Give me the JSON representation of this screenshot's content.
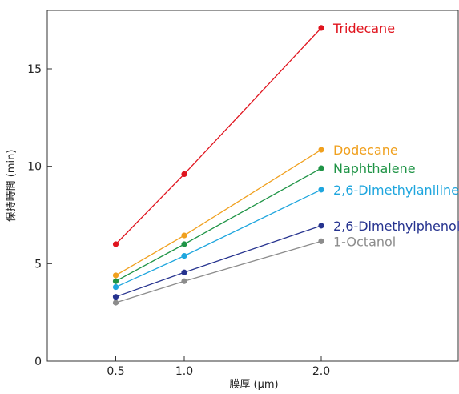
{
  "chart_data": {
    "type": "line",
    "title": "",
    "xlabel": "膜厚 (μm)",
    "ylabel": "保持時間 (min)",
    "x": [
      0.5,
      1.0,
      2.0
    ],
    "x_tick_labels": [
      "0.5",
      "1.0",
      "2.0"
    ],
    "xlim": [
      0.0,
      3.0
    ],
    "ylim": [
      0,
      18.0
    ],
    "y_ticks": [
      0,
      5,
      10,
      15
    ],
    "grid": false,
    "legend": "labels at right end of each line",
    "series": [
      {
        "name": "Tridecane",
        "color": "#e0141e",
        "values": [
          6.0,
          9.6,
          17.1
        ]
      },
      {
        "name": "Dodecane",
        "color": "#f0a01e",
        "values": [
          4.4,
          6.45,
          10.85
        ]
      },
      {
        "name": "Naphthalene",
        "color": "#1f9446",
        "values": [
          4.1,
          6.0,
          9.9
        ]
      },
      {
        "name": "2,6-Dimethylaniline",
        "color": "#1fa6de",
        "values": [
          3.8,
          5.4,
          8.8
        ]
      },
      {
        "name": "2,6-Dimethylphenol",
        "color": "#26338f",
        "values": [
          3.3,
          4.55,
          6.95
        ]
      },
      {
        "name": "1-Octanol",
        "color": "#8c8c8c",
        "values": [
          3.0,
          4.1,
          6.15
        ]
      }
    ]
  }
}
